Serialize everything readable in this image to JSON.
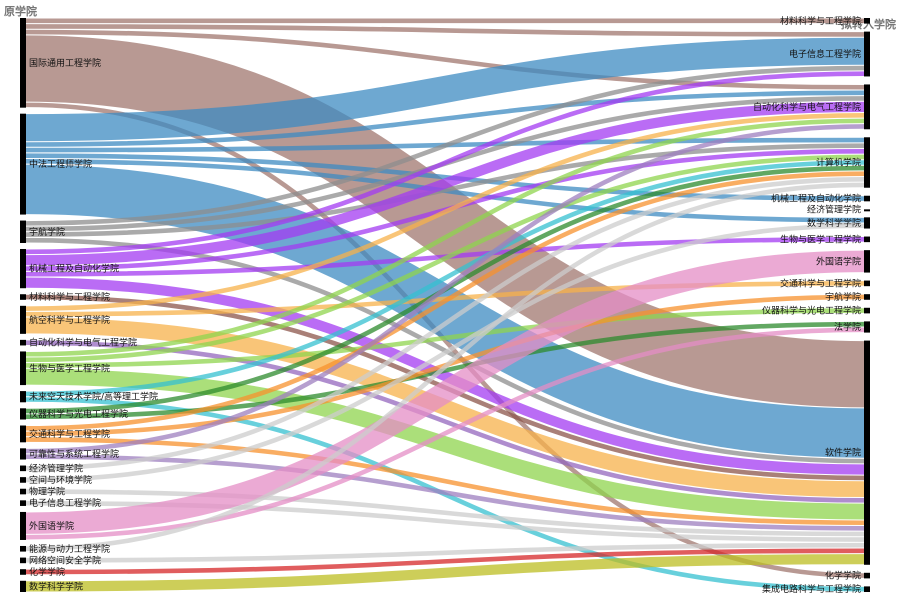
{
  "headers": {
    "source": "原学院",
    "target": "拟转入学院"
  },
  "chart_data": {
    "type": "sankey",
    "sources": [
      {
        "name": "国际通用工程学院",
        "color": "#a0776f"
      },
      {
        "name": "中法工程师学院",
        "color": "#3d8bc1"
      },
      {
        "name": "宇航学院",
        "color": "#8d8d8d"
      },
      {
        "name": "机械工程及自动化学院",
        "color": "#a33bf2"
      },
      {
        "name": "材料科学与工程学院",
        "color": "#8c564b"
      },
      {
        "name": "航空科学与工程学院",
        "color": "#f7b14b"
      },
      {
        "name": "自动化科学与电气工程学院",
        "color": "#9467bd"
      },
      {
        "name": "生物与医学工程学院",
        "color": "#8fd44e"
      },
      {
        "name": "未来空天技术学院/高等理工学院",
        "color": "#35c0d0"
      },
      {
        "name": "仪器科学与光电工程学院",
        "color": "#2e8b2e"
      },
      {
        "name": "交通科学与工程学院",
        "color": "#f7922e"
      },
      {
        "name": "可靠性与系统工程学院",
        "color": "#9e7fbf"
      },
      {
        "name": "经济管理学院",
        "color": "#cccccc"
      },
      {
        "name": "空间与环境学院",
        "color": "#cccccc"
      },
      {
        "name": "物理学院",
        "color": "#cccccc"
      },
      {
        "name": "电子信息工程学院",
        "color": "#cccccc"
      },
      {
        "name": "外国语学院",
        "color": "#e48ec6"
      },
      {
        "name": "能源与动力工程学院",
        "color": "#cccccc"
      },
      {
        "name": "网络空间安全学院",
        "color": "#cccccc"
      },
      {
        "name": "化学学院",
        "color": "#d62728"
      },
      {
        "name": "数学科学学院",
        "color": "#bcbd22"
      }
    ],
    "targets": [
      {
        "name": "材料科学与工程学院"
      },
      {
        "name": "电子信息工程学院"
      },
      {
        "name": "自动化科学与电气工程学院"
      },
      {
        "name": "计算机学院"
      },
      {
        "name": "机械工程及自动化学院"
      },
      {
        "name": "经济管理学院"
      },
      {
        "name": "数学科学学院"
      },
      {
        "name": "生物与医学工程学院"
      },
      {
        "name": "外国语学院"
      },
      {
        "name": "交通科学与工程学院"
      },
      {
        "name": "宇航学院"
      },
      {
        "name": "仪器科学与光电工程学院"
      },
      {
        "name": "法学院"
      },
      {
        "name": "软件学院"
      },
      {
        "name": "化学学院"
      },
      {
        "name": "集成电路科学与工程学院"
      }
    ],
    "links": [
      {
        "source": 0,
        "target": 0,
        "value": 1
      },
      {
        "source": 0,
        "target": 1,
        "value": 1
      },
      {
        "source": 0,
        "target": 2,
        "value": 1
      },
      {
        "source": 0,
        "target": 13,
        "value": 12
      },
      {
        "source": 0,
        "target": 14,
        "value": 1
      },
      {
        "source": 1,
        "target": 1,
        "value": 5
      },
      {
        "source": 1,
        "target": 2,
        "value": 1
      },
      {
        "source": 1,
        "target": 3,
        "value": 1
      },
      {
        "source": 1,
        "target": 4,
        "value": 1
      },
      {
        "source": 1,
        "target": 6,
        "value": 1
      },
      {
        "source": 1,
        "target": 13,
        "value": 9
      },
      {
        "source": 2,
        "target": 1,
        "value": 1
      },
      {
        "source": 2,
        "target": 2,
        "value": 1
      },
      {
        "source": 2,
        "target": 3,
        "value": 1
      },
      {
        "source": 2,
        "target": 13,
        "value": 1
      },
      {
        "source": 3,
        "target": 1,
        "value": 1
      },
      {
        "source": 3,
        "target": 2,
        "value": 2
      },
      {
        "source": 3,
        "target": 3,
        "value": 1
      },
      {
        "source": 3,
        "target": 7,
        "value": 1
      },
      {
        "source": 3,
        "target": 13,
        "value": 2
      },
      {
        "source": 4,
        "target": 13,
        "value": 1
      },
      {
        "source": 5,
        "target": 2,
        "value": 1
      },
      {
        "source": 5,
        "target": 9,
        "value": 1
      },
      {
        "source": 5,
        "target": 13,
        "value": 3
      },
      {
        "source": 6,
        "target": 13,
        "value": 1
      },
      {
        "source": 7,
        "target": 2,
        "value": 1
      },
      {
        "source": 7,
        "target": 3,
        "value": 1
      },
      {
        "source": 7,
        "target": 11,
        "value": 1
      },
      {
        "source": 7,
        "target": 13,
        "value": 3
      },
      {
        "source": 8,
        "target": 3,
        "value": 1
      },
      {
        "source": 8,
        "target": 15,
        "value": 1
      },
      {
        "source": 9,
        "target": 3,
        "value": 1
      },
      {
        "source": 9,
        "target": 12,
        "value": 1
      },
      {
        "source": 10,
        "target": 3,
        "value": 1
      },
      {
        "source": 10,
        "target": 10,
        "value": 1
      },
      {
        "source": 10,
        "target": 13,
        "value": 1
      },
      {
        "source": 11,
        "target": 2,
        "value": 1
      },
      {
        "source": 11,
        "target": 13,
        "value": 1
      },
      {
        "source": 12,
        "target": 3,
        "value": 1
      },
      {
        "source": 13,
        "target": 6,
        "value": 1
      },
      {
        "source": 14,
        "target": 13,
        "value": 1
      },
      {
        "source": 15,
        "target": 13,
        "value": 1
      },
      {
        "source": 16,
        "target": 8,
        "value": 4
      },
      {
        "source": 16,
        "target": 12,
        "value": 1
      },
      {
        "source": 17,
        "target": 3,
        "value": 1
      },
      {
        "source": 18,
        "target": 13,
        "value": 1
      },
      {
        "source": 19,
        "target": 13,
        "value": 1
      },
      {
        "source": 20,
        "target": 13,
        "value": 2
      }
    ]
  }
}
